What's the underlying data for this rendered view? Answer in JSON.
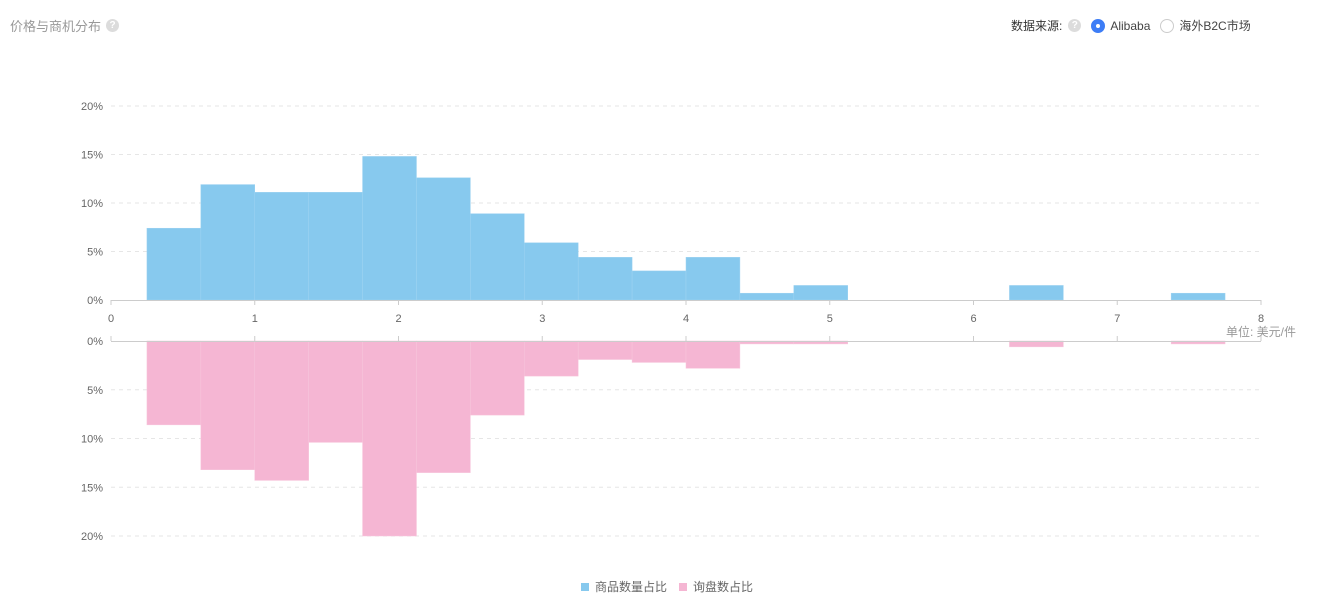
{
  "header": {
    "title": "价格与商机分布",
    "help_icon": "question-circle-icon"
  },
  "source": {
    "label": "数据来源:",
    "options": [
      {
        "label": "Alibaba",
        "selected": true
      },
      {
        "label": "海外B2C市场",
        "selected": false
      }
    ]
  },
  "colors": {
    "upper": "#87c9ee",
    "lower": "#f5b6d3",
    "accent": "#3d7df6"
  },
  "chart_data": {
    "type": "bar",
    "subtype": "mirrored-histogram",
    "x_ticks": [
      "0",
      "1",
      "2",
      "3",
      "4",
      "5",
      "6",
      "7",
      "8"
    ],
    "xlim": [
      0,
      8
    ],
    "unit_label": "单位: 美元/件",
    "upper_axis": {
      "ticks": [
        "0%",
        "5%",
        "10%",
        "15%",
        "20%"
      ],
      "ylim": [
        0,
        20
      ]
    },
    "lower_axis": {
      "ticks": [
        "0%",
        "5%",
        "10%",
        "15%",
        "20%"
      ],
      "ylim": [
        0,
        20
      ]
    },
    "bin_edges": [
      0.25,
      0.625,
      1.0,
      1.375,
      1.75,
      2.125,
      2.5,
      2.875,
      3.25,
      3.625,
      4.0,
      4.375,
      4.75,
      5.125,
      5.5,
      5.875,
      6.25,
      6.625,
      7.0,
      7.375,
      7.75
    ],
    "series": [
      {
        "name": "商品数量占比",
        "values": [
          7.4,
          11.9,
          11.1,
          11.1,
          14.8,
          12.6,
          8.9,
          5.9,
          4.4,
          3.0,
          4.4,
          0.7,
          1.5,
          0,
          0,
          0,
          1.5,
          0,
          0,
          0.7
        ]
      },
      {
        "name": "询盘数占比",
        "values": [
          8.6,
          13.2,
          14.3,
          10.4,
          20.0,
          13.5,
          7.6,
          3.6,
          1.9,
          2.2,
          2.8,
          0.3,
          0.3,
          0,
          0,
          0,
          0.6,
          0,
          0,
          0.3
        ]
      }
    ],
    "grid": true,
    "legend_position": "bottom-center"
  }
}
